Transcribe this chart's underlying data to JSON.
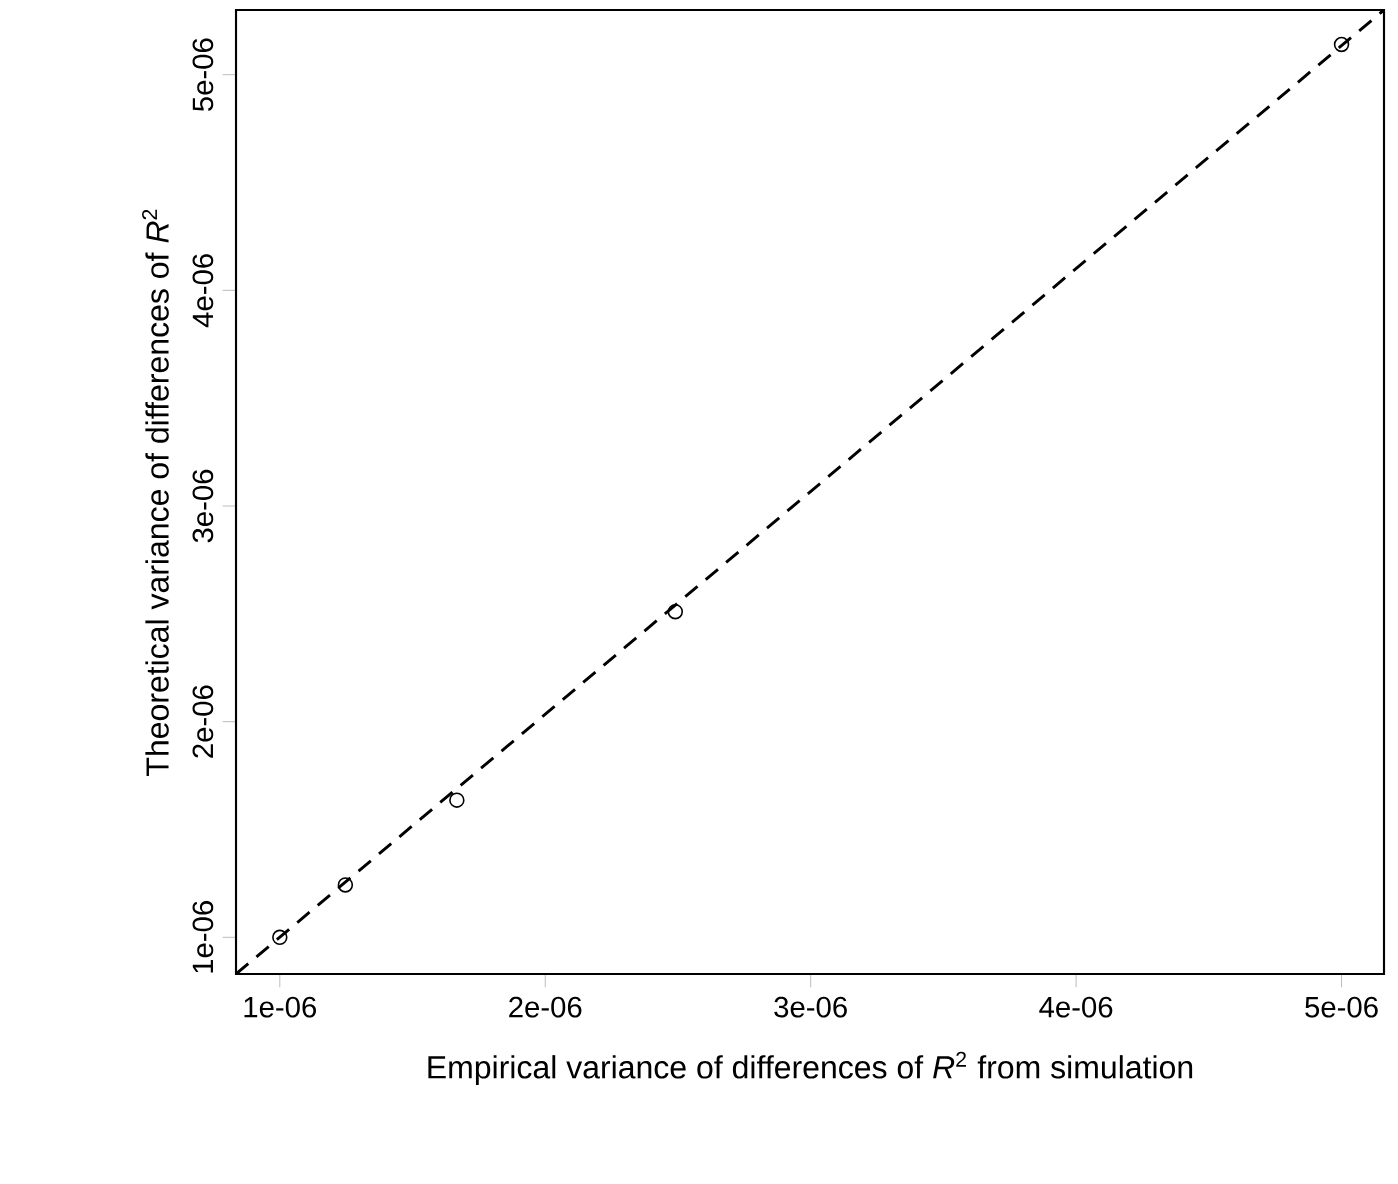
{
  "chart_data": {
    "type": "scatter",
    "xlabel": "Empirical variance of differences of *R*$^{2}$ from simulation",
    "ylabel": "Theoretical variance of differences of *R*$^{2}$",
    "xlim": [
      8.35e-07,
      5.16e-06
    ],
    "ylim": [
      8.3e-07,
      5.3e-06
    ],
    "xticks": [
      {
        "value": 1e-06,
        "label": "1e-06"
      },
      {
        "value": 2e-06,
        "label": "2e-06"
      },
      {
        "value": 3e-06,
        "label": "3e-06"
      },
      {
        "value": 4e-06,
        "label": "4e-06"
      },
      {
        "value": 5e-06,
        "label": "5e-06"
      }
    ],
    "yticks": [
      {
        "value": 1e-06,
        "label": "1e-06"
      },
      {
        "value": 2e-06,
        "label": "2e-06"
      },
      {
        "value": 3e-06,
        "label": "3e-06"
      },
      {
        "value": 4e-06,
        "label": "4e-06"
      },
      {
        "value": 5e-06,
        "label": "5e-06"
      }
    ],
    "series": [
      {
        "color": "#000000",
        "marker": "circle",
        "x": [
          1e-06,
          1.247e-06,
          1.667e-06,
          2.49e-06,
          5e-06
        ],
        "values": [
          1e-06,
          1.243e-06,
          1.636e-06,
          2.51e-06,
          5.14e-06
        ]
      },
      {
        "type": "line",
        "color": "#000000",
        "marker": "none",
        "line_style": "dashed",
        "x": [
          8.35e-07,
          5.16e-06
        ],
        "values": [
          8.3e-07,
          5.3e-06
        ]
      }
    ]
  }
}
